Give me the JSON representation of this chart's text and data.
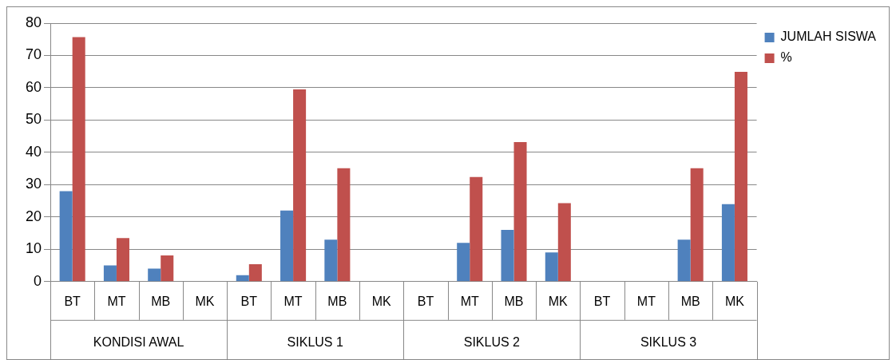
{
  "chart_data": {
    "type": "bar",
    "categories": [
      "BT",
      "MT",
      "MB",
      "MK",
      "BT",
      "MT",
      "MB",
      "MK",
      "BT",
      "MT",
      "MB",
      "MK",
      "BT",
      "MT",
      "MB",
      "MK"
    ],
    "series": [
      {
        "name": "JUMLAH SISWA",
        "color": "#4f81bd",
        "values": [
          28,
          5,
          4,
          0,
          2,
          22,
          13,
          0,
          0,
          12,
          16,
          9,
          0,
          0,
          13,
          24
        ]
      },
      {
        "name": "%",
        "color": "#c0504d",
        "values": [
          75.7,
          13.5,
          8.1,
          0,
          5.4,
          59.5,
          35.1,
          0,
          0,
          32.4,
          43.2,
          24.3,
          0,
          0,
          35.1,
          64.9
        ]
      }
    ],
    "annotations": [
      "KONDISI AWAL",
      "SIKLUS 1",
      "SIKLUS 2",
      "SIKLUS 3"
    ],
    "ylim": [
      0,
      80
    ],
    "yticks": [
      0,
      10,
      20,
      30,
      40,
      50,
      60,
      70,
      80
    ],
    "grid": "y",
    "legend": "top right"
  }
}
